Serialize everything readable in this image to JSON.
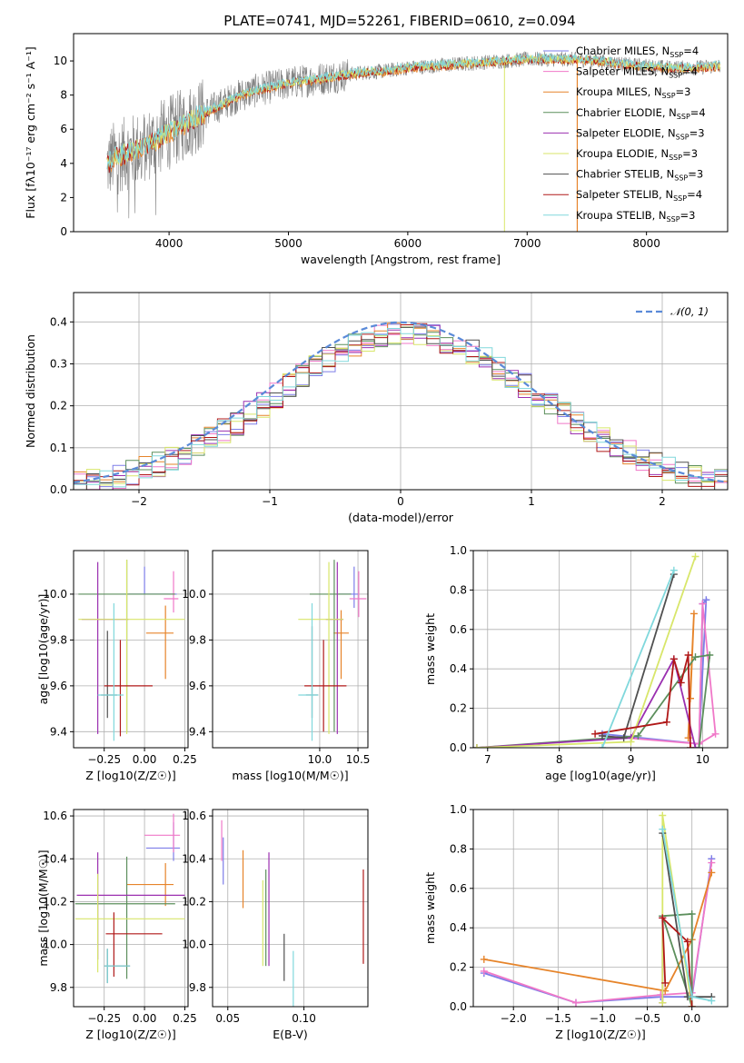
{
  "title": "PLATE=0741, MJD=52261, FIBERID=0610, z=0.094",
  "colors": {
    "Chabrier MILES": "#7d7de8",
    "Salpeter MILES": "#f078c8",
    "Kroupa MILES": "#e6842a",
    "Chabrier ELODIE": "#5c8f5c",
    "Salpeter ELODIE": "#9b30b0",
    "Kroupa ELODIE": "#d8e66a",
    "Chabrier STELIB": "#505050",
    "Salpeter STELIB": "#b01818",
    "Kroupa STELIB": "#80d8dc",
    "gauss": "#5a8ad8",
    "spectrum": "#808080"
  },
  "chart_data": [
    {
      "id": "spectrum",
      "type": "line",
      "xlabel": "wavelength [Angstrom, rest frame]",
      "ylabel": "Flux [fλ10⁻¹⁷ erg cm⁻² s⁻¹ A⁻¹]",
      "xlim": [
        3200,
        8680
      ],
      "ylim": [
        0,
        11.6
      ],
      "xticks": [
        4000,
        5000,
        6000,
        7000,
        8000
      ],
      "yticks": [
        0,
        2,
        4,
        6,
        8,
        10
      ],
      "legend_position": "upper-right",
      "legend": [
        {
          "name": "Chabrier MILES",
          "nssp": "4"
        },
        {
          "name": "Salpeter MILES",
          "nssp": "4"
        },
        {
          "name": "Kroupa MILES",
          "nssp": "3"
        },
        {
          "name": "Chabrier ELODIE",
          "nssp": "4"
        },
        {
          "name": "Salpeter ELODIE",
          "nssp": "3"
        },
        {
          "name": "Kroupa ELODIE",
          "nssp": "3"
        },
        {
          "name": "Chabrier STELIB",
          "nssp": "3"
        },
        {
          "name": "Salpeter STELIB",
          "nssp": "4"
        },
        {
          "name": "Kroupa STELIB",
          "nssp": "3"
        }
      ],
      "continuum": [
        [
          3480,
          3.9
        ],
        [
          3550,
          4.4
        ],
        [
          3650,
          4.6
        ],
        [
          3800,
          5.0
        ],
        [
          3950,
          5.6
        ],
        [
          4050,
          6.0
        ],
        [
          4200,
          6.6
        ],
        [
          4400,
          7.3
        ],
        [
          4600,
          8.0
        ],
        [
          4800,
          8.4
        ],
        [
          5000,
          8.7
        ],
        [
          5200,
          8.9
        ],
        [
          5400,
          9.1
        ],
        [
          5600,
          9.3
        ],
        [
          5800,
          9.4
        ],
        [
          6000,
          9.6
        ],
        [
          6200,
          9.7
        ],
        [
          6400,
          9.8
        ],
        [
          6600,
          9.9
        ],
        [
          6800,
          10.0
        ],
        [
          7000,
          10.1
        ],
        [
          7200,
          10.1
        ],
        [
          7400,
          10.1
        ],
        [
          7600,
          10.0
        ],
        [
          7800,
          9.8
        ],
        [
          8000,
          9.7
        ],
        [
          8200,
          9.6
        ],
        [
          8400,
          9.6
        ],
        [
          8600,
          9.7
        ]
      ]
    },
    {
      "id": "residuals",
      "type": "histogram",
      "xlabel": "(data-model)/error",
      "ylabel": "Normed distribution",
      "xlim": [
        -2.5,
        2.5
      ],
      "ylim": [
        0,
        0.47
      ],
      "xticks": [
        -2,
        -1,
        0,
        1,
        2
      ],
      "yticks": [
        0.0,
        0.1,
        0.2,
        0.3,
        0.4
      ],
      "gaussian_label": "𝒩(0, 1)",
      "bin_width": 0.1
    },
    {
      "id": "age_vs_Z",
      "type": "errorbar",
      "xlabel": "Z [log10(Z/Z☉)]",
      "ylabel": "age  [log10(age/yr)]",
      "xlim": [
        -0.44,
        0.27
      ],
      "ylim": [
        9.33,
        10.19
      ],
      "xticks": [
        -0.25,
        0.0,
        0.25
      ],
      "yticks": [
        9.4,
        9.6,
        9.8,
        10.0
      ],
      "points": [
        {
          "model": "Chabrier MILES",
          "x": 0.0,
          "xerr": [
            0.1,
            0.2
          ],
          "y": 10.0,
          "yerr": [
            0.0,
            0.12
          ]
        },
        {
          "model": "Salpeter MILES",
          "x": 0.18,
          "xerr": [
            0.06,
            0.03
          ],
          "y": 9.98,
          "yerr": [
            0.06,
            0.12
          ]
        },
        {
          "model": "Kroupa MILES",
          "x": 0.13,
          "xerr": [
            0.12,
            0.05
          ],
          "y": 9.83,
          "yerr": [
            0.2,
            0.12
          ]
        },
        {
          "model": "Chabrier ELODIE",
          "x": -0.11,
          "xerr": [
            0.3,
            0.3
          ],
          "y": 10.0,
          "yerr": [
            0.6,
            0.15
          ]
        },
        {
          "model": "Salpeter ELODIE",
          "x": -0.29,
          "xerr": [
            0.1,
            0.19
          ],
          "y": 9.89,
          "yerr": [
            0.5,
            0.25
          ]
        },
        {
          "model": "Kroupa ELODIE",
          "x": -0.11,
          "xerr": [
            0.3,
            0.36
          ],
          "y": 9.89,
          "yerr": [
            0.5,
            0.26
          ]
        },
        {
          "model": "Chabrier STELIB",
          "x": -0.23,
          "xerr": [
            0.04,
            0.06
          ],
          "y": 9.56,
          "yerr": [
            0.1,
            0.28
          ]
        },
        {
          "model": "Salpeter STELIB",
          "x": -0.15,
          "xerr": [
            0.1,
            0.2
          ],
          "y": 9.6,
          "yerr": [
            0.22,
            0.2
          ]
        },
        {
          "model": "Kroupa STELIB",
          "x": -0.19,
          "xerr": [
            0.1,
            0.06
          ],
          "y": 9.56,
          "yerr": [
            0.2,
            0.4
          ]
        }
      ]
    },
    {
      "id": "age_vs_mass",
      "type": "errorbar",
      "xlabel": "mass [log10(M/M☉)]",
      "ylabel": "",
      "xlim": [
        8.6,
        10.63
      ],
      "ylim": [
        9.33,
        10.19
      ],
      "xticks": [
        10.0,
        10.5
      ],
      "yticks": [
        9.4,
        9.6,
        9.8,
        10.0
      ],
      "points": [
        {
          "model": "Chabrier MILES",
          "x": 10.45,
          "xerr": [
            0.2,
            0.05
          ],
          "y": 10.0,
          "yerr": [
            0.06,
            0.12
          ]
        },
        {
          "model": "Salpeter MILES",
          "x": 10.51,
          "xerr": [
            0.12,
            0.1
          ],
          "y": 9.98,
          "yerr": [
            0.08,
            0.12
          ]
        },
        {
          "model": "Kroupa MILES",
          "x": 10.28,
          "xerr": [
            0.1,
            0.1
          ],
          "y": 9.83,
          "yerr": [
            0.2,
            0.1
          ]
        },
        {
          "model": "Chabrier ELODIE",
          "x": 10.19,
          "xerr": [
            0.32,
            0.22
          ],
          "y": 10.0,
          "yerr": [
            0.6,
            0.15
          ]
        },
        {
          "model": "Salpeter ELODIE",
          "x": 10.23,
          "xerr": [
            0.15,
            0.08
          ],
          "y": 9.89,
          "yerr": [
            0.5,
            0.25
          ]
        },
        {
          "model": "Kroupa ELODIE",
          "x": 10.12,
          "xerr": [
            0.4,
            0.19
          ],
          "y": 9.89,
          "yerr": [
            0.5,
            0.25
          ]
        },
        {
          "model": "Chabrier STELIB",
          "x": 9.9,
          "xerr": [
            0.08,
            0.08
          ],
          "y": 9.56,
          "yerr": [
            0.1,
            0.3
          ]
        },
        {
          "model": "Salpeter STELIB",
          "x": 10.05,
          "xerr": [
            0.25,
            0.3
          ],
          "y": 9.6,
          "yerr": [
            0.2,
            0.2
          ]
        },
        {
          "model": "Kroupa STELIB",
          "x": 9.9,
          "xerr": [
            0.18,
            0.08
          ],
          "y": 9.56,
          "yerr": [
            0.2,
            0.4
          ]
        }
      ]
    },
    {
      "id": "mw_vs_age",
      "type": "line",
      "xlabel": "age  [log10(age/yr)]",
      "ylabel": "mass weight",
      "xlim": [
        6.8,
        10.35
      ],
      "ylim": [
        0,
        1.0
      ],
      "xticks": [
        7,
        8,
        9,
        10
      ],
      "yticks": [
        0.0,
        0.2,
        0.4,
        0.6,
        0.8,
        1.0
      ],
      "series": [
        {
          "model": "Chabrier MILES",
          "x": [
            8.6,
            9.95,
            10.05,
            10.0,
            9.95
          ],
          "y": [
            0.07,
            0.02,
            0.75,
            0.73,
            0.02
          ]
        },
        {
          "model": "Salpeter MILES",
          "x": [
            8.6,
            9.95,
            10.0,
            10.18,
            9.95
          ],
          "y": [
            0.06,
            0.02,
            0.73,
            0.07,
            0.02
          ]
        },
        {
          "model": "Kroupa MILES",
          "x": [
            9.8,
            9.88,
            9.83
          ],
          "y": [
            0.05,
            0.68,
            0.25
          ]
        },
        {
          "model": "Chabrier ELODIE",
          "x": [
            6.85,
            9.1,
            9.9,
            10.1,
            9.95
          ],
          "y": [
            0.0,
            0.06,
            0.46,
            0.47,
            0.0
          ]
        },
        {
          "model": "Salpeter ELODIE",
          "x": [
            6.85,
            9.0,
            9.6,
            9.9
          ],
          "y": [
            0.0,
            0.05,
            0.45,
            0.0
          ]
        },
        {
          "model": "Kroupa ELODIE",
          "x": [
            6.85,
            9.0,
            9.9
          ],
          "y": [
            0.0,
            0.03,
            0.97
          ]
        },
        {
          "model": "Chabrier STELIB",
          "x": [
            8.6,
            8.9,
            9.6
          ],
          "y": [
            0.06,
            0.05,
            0.88
          ]
        },
        {
          "model": "Salpeter STELIB",
          "x": [
            8.5,
            9.5,
            9.6,
            9.7,
            9.8,
            9.83
          ],
          "y": [
            0.07,
            0.13,
            0.45,
            0.33,
            0.47,
            0.0
          ]
        },
        {
          "model": "Kroupa STELIB",
          "x": [
            8.6,
            9.6
          ],
          "y": [
            0.0,
            0.9
          ]
        }
      ]
    },
    {
      "id": "mass_vs_Z",
      "type": "errorbar",
      "xlabel": "Z [log10(Z/Z☉)]",
      "ylabel": "mass [log10(M/M☉)]",
      "xlim": [
        -0.44,
        0.27
      ],
      "ylim": [
        9.71,
        10.63
      ],
      "xticks": [
        -0.25,
        0.0,
        0.25
      ],
      "yticks": [
        9.8,
        10.0,
        10.2,
        10.4,
        10.6
      ],
      "points": [
        {
          "model": "Chabrier MILES",
          "x": 0.18,
          "xerr": [
            0.17,
            0.04
          ],
          "y": 10.45,
          "yerr": [
            0.06,
            0.12
          ]
        },
        {
          "model": "Salpeter MILES",
          "x": 0.18,
          "xerr": [
            0.18,
            0.04
          ],
          "y": 10.51,
          "yerr": [
            0.08,
            0.1
          ]
        },
        {
          "model": "Kroupa MILES",
          "x": 0.13,
          "xerr": [
            0.24,
            0.05
          ],
          "y": 10.28,
          "yerr": [
            0.1,
            0.1
          ]
        },
        {
          "model": "Chabrier ELODIE",
          "x": -0.11,
          "xerr": [
            0.32,
            0.3
          ],
          "y": 10.19,
          "yerr": [
            0.35,
            0.22
          ]
        },
        {
          "model": "Salpeter ELODIE",
          "x": -0.29,
          "xerr": [
            0.13,
            0.54
          ],
          "y": 10.23,
          "yerr": [
            0.3,
            0.2
          ]
        },
        {
          "model": "Kroupa ELODIE",
          "x": -0.29,
          "xerr": [
            0.14,
            0.54
          ],
          "y": 10.12,
          "yerr": [
            0.25,
            0.21
          ]
        },
        {
          "model": "Chabrier STELIB",
          "x": -0.23,
          "xerr": [
            0.02,
            0.14
          ],
          "y": 9.9,
          "yerr": [
            0.08,
            0.08
          ]
        },
        {
          "model": "Salpeter STELIB",
          "x": -0.19,
          "xerr": [
            0.05,
            0.3
          ],
          "y": 10.05,
          "yerr": [
            0.2,
            0.1
          ]
        },
        {
          "model": "Kroupa STELIB",
          "x": -0.23,
          "xerr": [
            0.02,
            0.14
          ],
          "y": 9.9,
          "yerr": [
            0.08,
            0.08
          ]
        }
      ]
    },
    {
      "id": "mass_vs_ebv",
      "type": "errorbar",
      "xlabel": "E(B-V)",
      "ylabel": "",
      "xlim": [
        0.04,
        0.142
      ],
      "ylim": [
        9.71,
        10.63
      ],
      "xticks": [
        0.05,
        0.1
      ],
      "yticks": [
        9.8,
        10.0,
        10.2,
        10.4,
        10.6
      ],
      "points": [
        {
          "model": "Chabrier MILES",
          "x": 0.047,
          "y": 10.4,
          "yerr": [
            0.12,
            0.1
          ]
        },
        {
          "model": "Salpeter MILES",
          "x": 0.046,
          "y": 10.45,
          "yerr": [
            0.06,
            0.13
          ]
        },
        {
          "model": "Kroupa MILES",
          "x": 0.06,
          "y": 10.28,
          "yerr": [
            0.11,
            0.16
          ]
        },
        {
          "model": "Chabrier ELODIE",
          "x": 0.075,
          "y": 10.15,
          "yerr": [
            0.25,
            0.2
          ]
        },
        {
          "model": "Salpeter ELODIE",
          "x": 0.077,
          "y": 10.2,
          "yerr": [
            0.3,
            0.23
          ]
        },
        {
          "model": "Kroupa ELODIE",
          "x": 0.073,
          "y": 10.1,
          "yerr": [
            0.2,
            0.2
          ]
        },
        {
          "model": "Chabrier STELIB",
          "x": 0.087,
          "y": 9.95,
          "yerr": [
            0.12,
            0.1
          ]
        },
        {
          "model": "Salpeter STELIB",
          "x": 0.139,
          "y": 10.15,
          "yerr": [
            0.24,
            0.2
          ]
        },
        {
          "model": "Kroupa STELIB",
          "x": 0.093,
          "y": 9.87,
          "yerr": [
            0.17,
            0.1
          ]
        }
      ]
    },
    {
      "id": "mw_vs_Z",
      "type": "line",
      "xlabel": "Z [log10(Z/Z☉)]",
      "ylabel": "mass weight",
      "xlim": [
        -2.45,
        0.4
      ],
      "ylim": [
        0,
        1.0
      ],
      "xticks": [
        -2.0,
        -1.5,
        -1.0,
        -0.5,
        0.0
      ],
      "yticks": [
        0.0,
        0.2,
        0.4,
        0.6,
        0.8,
        1.0
      ],
      "series": [
        {
          "model": "Chabrier MILES",
          "x": [
            -2.33,
            -1.3,
            -0.35,
            0.0,
            0.22
          ],
          "y": [
            0.17,
            0.02,
            0.05,
            0.05,
            0.75
          ]
        },
        {
          "model": "Salpeter MILES",
          "x": [
            -2.33,
            -1.3,
            -0.35,
            0.0,
            0.22
          ],
          "y": [
            0.18,
            0.02,
            0.06,
            0.07,
            0.73
          ]
        },
        {
          "model": "Kroupa MILES",
          "x": [
            -2.33,
            -0.3,
            0.0,
            0.22
          ],
          "y": [
            0.24,
            0.08,
            0.34,
            0.68
          ]
        },
        {
          "model": "Chabrier ELODIE",
          "x": [
            -0.33,
            0.0,
            0.0,
            -0.33
          ],
          "y": [
            0.46,
            0.0,
            0.47,
            0.46
          ]
        },
        {
          "model": "Salpeter ELODIE",
          "x": [
            -0.33,
            -0.33
          ],
          "y": [
            0.02,
            0.45
          ]
        },
        {
          "model": "Kroupa ELODIE",
          "x": [
            -0.33,
            -0.33,
            0.0
          ],
          "y": [
            0.02,
            0.97,
            0.0
          ]
        },
        {
          "model": "Chabrier STELIB",
          "x": [
            -0.33,
            -0.05,
            0.22
          ],
          "y": [
            0.88,
            0.05,
            0.05
          ]
        },
        {
          "model": "Salpeter STELIB",
          "x": [
            -0.3,
            -0.33,
            -0.05,
            0.0
          ],
          "y": [
            0.12,
            0.45,
            0.33,
            0.0
          ]
        },
        {
          "model": "Kroupa STELIB",
          "x": [
            -0.33,
            0.0,
            0.22
          ],
          "y": [
            0.9,
            0.05,
            0.03
          ]
        }
      ]
    }
  ]
}
